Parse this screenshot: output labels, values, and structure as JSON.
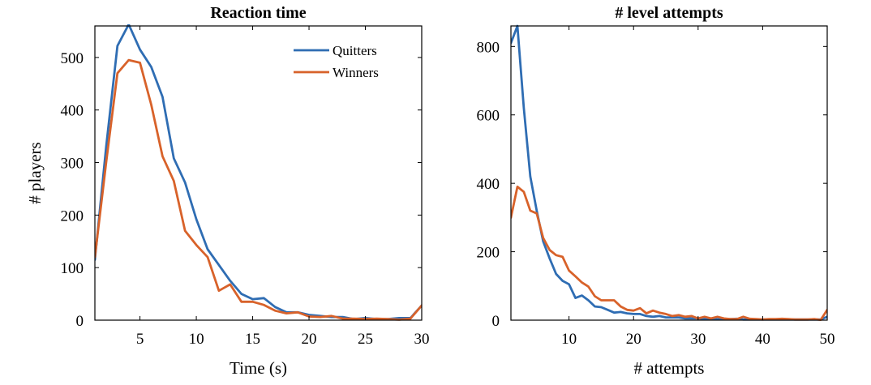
{
  "chart_data": [
    {
      "type": "line",
      "title": "Reaction time",
      "xlabel": "Time (s)",
      "ylabel": "# players",
      "xlim": [
        1,
        30
      ],
      "ylim": [
        0,
        560
      ],
      "xticks": [
        5,
        10,
        15,
        20,
        25,
        30
      ],
      "yticks": [
        0,
        100,
        200,
        300,
        400,
        500
      ],
      "legend_position": "top-right",
      "grid": false,
      "x": [
        1,
        2,
        3,
        4,
        5,
        6,
        7,
        8,
        9,
        10,
        11,
        12,
        13,
        14,
        15,
        16,
        17,
        18,
        19,
        20,
        21,
        22,
        23,
        24,
        25,
        26,
        27,
        28,
        29,
        30
      ],
      "series": [
        {
          "name": "Quitters",
          "color": "#2f6db3",
          "values": [
            115,
            330,
            522,
            563,
            515,
            482,
            425,
            308,
            262,
            192,
            135,
            105,
            75,
            50,
            40,
            42,
            25,
            15,
            15,
            10,
            8,
            6,
            6,
            2,
            4,
            2,
            2,
            4,
            4,
            28
          ]
        },
        {
          "name": "Winners",
          "color": "#d8622a",
          "values": [
            120,
            300,
            470,
            495,
            490,
            410,
            312,
            265,
            170,
            143,
            120,
            56,
            68,
            35,
            35,
            29,
            18,
            13,
            15,
            7,
            6,
            8,
            3,
            3,
            2,
            3,
            2,
            1,
            3,
            28
          ]
        }
      ]
    },
    {
      "type": "line",
      "title": "# level attempts",
      "xlabel": "# attempts",
      "ylabel": "",
      "xlim": [
        1,
        50
      ],
      "ylim": [
        0,
        860
      ],
      "xticks": [
        10,
        20,
        30,
        40,
        50
      ],
      "yticks": [
        0,
        200,
        400,
        600,
        800
      ],
      "grid": false,
      "x": [
        1,
        2,
        3,
        4,
        5,
        6,
        7,
        8,
        9,
        10,
        11,
        12,
        13,
        14,
        15,
        16,
        17,
        18,
        19,
        20,
        21,
        22,
        23,
        24,
        25,
        26,
        27,
        28,
        29,
        30,
        31,
        32,
        33,
        34,
        35,
        36,
        37,
        38,
        39,
        40,
        41,
        42,
        43,
        44,
        45,
        46,
        47,
        48,
        49,
        50
      ],
      "series": [
        {
          "name": "Quitters",
          "color": "#2f6db3",
          "values": [
            810,
            860,
            620,
            420,
            320,
            230,
            180,
            135,
            115,
            105,
            65,
            72,
            58,
            40,
            38,
            30,
            22,
            24,
            20,
            18,
            18,
            12,
            10,
            12,
            8,
            8,
            8,
            5,
            5,
            5,
            4,
            4,
            3,
            3,
            3,
            4,
            2,
            2,
            2,
            2,
            2,
            2,
            2,
            2,
            2,
            2,
            2,
            2,
            2,
            10
          ]
        },
        {
          "name": "Winners",
          "color": "#d8622a",
          "values": [
            300,
            390,
            375,
            320,
            312,
            240,
            205,
            190,
            185,
            145,
            128,
            110,
            98,
            70,
            58,
            58,
            58,
            40,
            30,
            28,
            35,
            20,
            28,
            22,
            18,
            12,
            15,
            10,
            12,
            5,
            10,
            5,
            10,
            5,
            3,
            3,
            10,
            4,
            3,
            2,
            3,
            3,
            4,
            3,
            2,
            2,
            2,
            3,
            1,
            30
          ]
        }
      ]
    }
  ]
}
